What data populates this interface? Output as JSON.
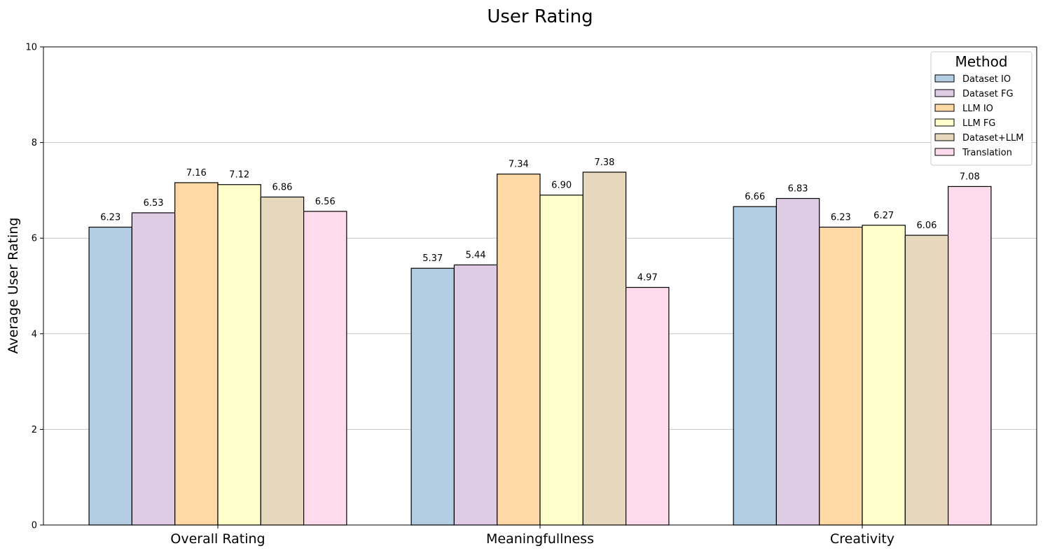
{
  "chart_data": {
    "type": "bar",
    "title": "User Rating",
    "xlabel": "",
    "ylabel": "Average User Rating",
    "ylim": [
      0,
      10
    ],
    "yticks": [
      0,
      2,
      4,
      6,
      8,
      10
    ],
    "grid": "y",
    "legend": {
      "title": "Method",
      "placement": "top-right"
    },
    "categories": [
      "Overall Rating",
      "Meaningfullness",
      "Creativity"
    ],
    "series": [
      {
        "name": "Dataset IO",
        "color": "#b3cde3",
        "values": [
          6.23,
          5.37,
          6.66
        ],
        "labels": [
          "6.23",
          "5.37",
          "6.66"
        ]
      },
      {
        "name": "Dataset FG",
        "color": "#decbe4",
        "values": [
          6.53,
          5.44,
          6.83
        ],
        "labels": [
          "6.53",
          "5.44",
          "6.83"
        ]
      },
      {
        "name": "LLM IO",
        "color": "#fed9a6",
        "values": [
          7.16,
          7.34,
          6.23
        ],
        "labels": [
          "7.16",
          "7.34",
          "6.23"
        ]
      },
      {
        "name": "LLM FG",
        "color": "#ffffcc",
        "values": [
          7.12,
          6.9,
          6.27
        ],
        "labels": [
          "7.12",
          "6.90",
          "6.27"
        ]
      },
      {
        "name": "Dataset+LLM",
        "color": "#e5d8bd",
        "values": [
          6.86,
          7.38,
          6.06
        ],
        "labels": [
          "6.86",
          "7.38",
          "6.06"
        ]
      },
      {
        "name": "Translation",
        "color": "#fddaec",
        "values": [
          6.56,
          4.97,
          7.08
        ],
        "labels": [
          "6.56",
          "4.97",
          "7.08"
        ]
      }
    ]
  }
}
